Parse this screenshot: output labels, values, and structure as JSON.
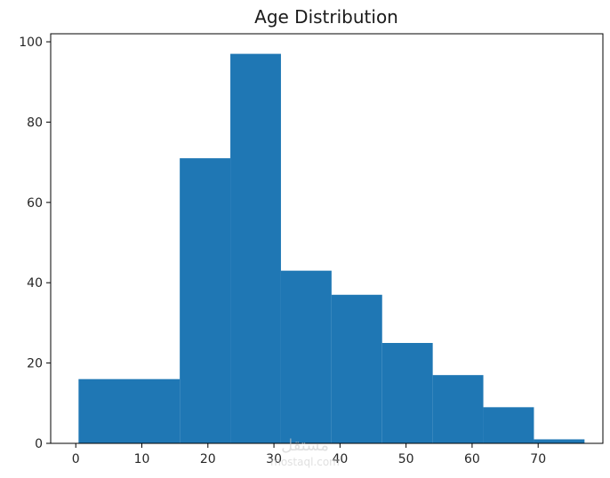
{
  "chart_data": {
    "type": "bar",
    "title": "Age Distribution",
    "xlabel": "",
    "ylabel": "",
    "xlim": [
      -3.8,
      79.8
    ],
    "ylim": [
      0,
      102
    ],
    "bins": [
      {
        "x0": 0.42,
        "x1": 15.74,
        "value": 16
      },
      {
        "x0": 15.74,
        "x1": 23.4,
        "value": 71
      },
      {
        "x0": 23.4,
        "x1": 31.06,
        "value": 97
      },
      {
        "x0": 31.06,
        "x1": 38.72,
        "value": 43
      },
      {
        "x0": 38.72,
        "x1": 46.38,
        "value": 37
      },
      {
        "x0": 46.38,
        "x1": 54.04,
        "value": 25
      },
      {
        "x0": 54.04,
        "x1": 61.7,
        "value": 17
      },
      {
        "x0": 61.7,
        "x1": 69.36,
        "value": 9
      },
      {
        "x0": 69.36,
        "x1": 77.02,
        "value": 1
      }
    ],
    "xticks": [
      0,
      10,
      20,
      30,
      40,
      50,
      60,
      70
    ],
    "yticks": [
      0,
      20,
      40,
      60,
      80,
      100
    ],
    "bar_color": "#1f77b4",
    "grid": false,
    "legend": "none"
  },
  "watermark": {
    "text_top": "مستقل",
    "text_bottom": "mostaql.com"
  }
}
